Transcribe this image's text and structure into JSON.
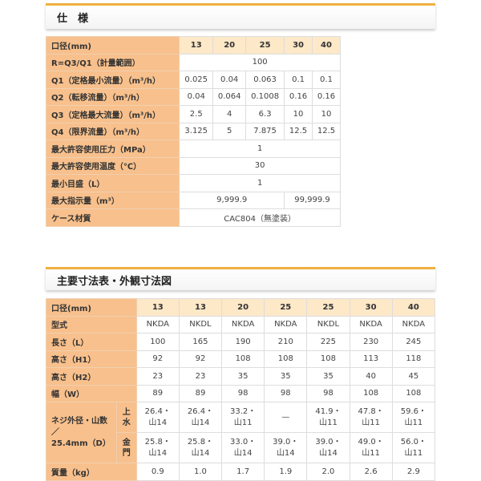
{
  "spec": {
    "title": "仕　様",
    "header": {
      "label": "口径(mm)",
      "cols": [
        "13",
        "20",
        "25",
        "30",
        "40"
      ]
    },
    "rows": [
      {
        "label": "R=Q3/Q1（計量範囲）",
        "span": "100"
      },
      {
        "label": "Q1（定格最小流量）（m³/h）",
        "values": [
          "0.025",
          "0.04",
          "0.063",
          "0.1",
          "0.1"
        ]
      },
      {
        "label": "Q2（転移流量）（m³/h）",
        "values": [
          "0.04",
          "0.064",
          "0.1008",
          "0.16",
          "0.16"
        ]
      },
      {
        "label": "Q3（定格最大流量）（m³/h）",
        "values": [
          "2.5",
          "4",
          "6.3",
          "10",
          "10"
        ]
      },
      {
        "label": "Q4（限界流量）（m³/h）",
        "values": [
          "3.125",
          "5",
          "7.875",
          "12.5",
          "12.5"
        ]
      },
      {
        "label": "最大許容使用圧力（MPa）",
        "span": "1"
      },
      {
        "label": "最大許容使用温度（℃）",
        "span": "30"
      },
      {
        "label": "最小目盛（L）",
        "span": "1"
      },
      {
        "label": "最大指示量（m³）",
        "a": "9,999.9",
        "b": "99,999.9"
      },
      {
        "label": "ケース材質",
        "span": "CAC804（無塗装）"
      }
    ]
  },
  "dims": {
    "title": "主要寸法表・外観寸法図",
    "header": {
      "label": "口径(mm)",
      "cols": [
        "13",
        "13",
        "20",
        "25",
        "25",
        "30",
        "40"
      ]
    },
    "rows": [
      {
        "label": "型式",
        "values": [
          "NKDA",
          "NKDL",
          "NKDA",
          "NKDA",
          "NKDL",
          "NKDA",
          "NKDA"
        ]
      },
      {
        "label": "長さ（L）",
        "values": [
          "100",
          "165",
          "190",
          "210",
          "225",
          "230",
          "245"
        ]
      },
      {
        "label": "高さ（H1）",
        "values": [
          "92",
          "92",
          "108",
          "108",
          "108",
          "113",
          "118"
        ]
      },
      {
        "label": "高さ（H2）",
        "values": [
          "23",
          "23",
          "35",
          "35",
          "35",
          "40",
          "45"
        ]
      },
      {
        "label": "幅（W）",
        "values": [
          "89",
          "89",
          "98",
          "98",
          "98",
          "108",
          "108"
        ]
      }
    ],
    "thread": {
      "label1": "ネジ外径・山数",
      "label2": "／",
      "label3": "25.4mm（D）",
      "sub1": "上",
      "sub1b": "水",
      "sub2": "金",
      "sub2b": "門",
      "a": [
        [
          "26.4・",
          "山14"
        ],
        [
          "26.4・",
          "山14"
        ],
        [
          "33.2・",
          "山11"
        ],
        [
          "—",
          ""
        ],
        [
          "41.9・",
          "山11"
        ],
        [
          "47.8・",
          "山11"
        ],
        [
          "59.6・",
          "山11"
        ]
      ],
      "b": [
        [
          "25.8・",
          "山14"
        ],
        [
          "25.8・",
          "山14"
        ],
        [
          "33.0・",
          "山14"
        ],
        [
          "39.0・",
          "山14"
        ],
        [
          "39.0・",
          "山14"
        ],
        [
          "49.0・",
          "山11"
        ],
        [
          "56.0・",
          "山11"
        ]
      ]
    },
    "weight": {
      "label": "質量（kg）",
      "values": [
        "0.9",
        "1.0",
        "1.7",
        "1.9",
        "2.0",
        "2.6",
        "2.9"
      ]
    }
  }
}
